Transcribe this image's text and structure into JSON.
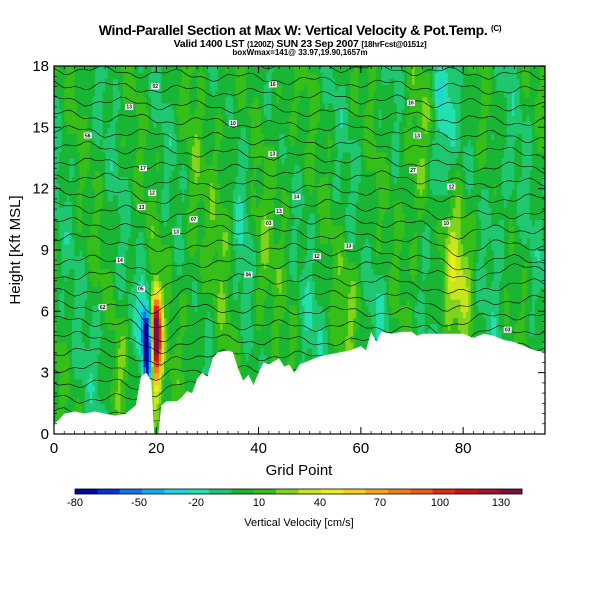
{
  "header": {
    "title": "Wind-Parallel Section at Max W: Vertical Velocity & Pot.Temp.",
    "copyright": "(C)",
    "valid_prefix": "Valid 1400 LST",
    "valid_utc": "(1200Z)",
    "valid_date": "SUN 23 Sep 2007",
    "forecast_tag": "[18hrFcst@0151z]",
    "subtitle": "boxWmax=141@ 33.97,19.90,1657m"
  },
  "chart_data": {
    "type": "heatmap",
    "title": "Wind-Parallel Section at Max W: Vertical Velocity & Pot.Temp.",
    "xlabel": "Grid Point",
    "ylabel": "Height [Kft MSL]",
    "xlim": [
      0,
      96
    ],
    "ylim": [
      0,
      18
    ],
    "x_ticks": [
      0,
      20,
      40,
      60,
      80
    ],
    "y_ticks": [
      0,
      3,
      6,
      9,
      12,
      15,
      18
    ],
    "x_tick_labels": [
      "0",
      "20",
      "40",
      "60",
      "80"
    ],
    "y_tick_labels": [
      "0",
      "3",
      "6",
      "9",
      "12",
      "15",
      "18"
    ],
    "colorbar": {
      "title": "Vertical Velocity [cm/s]",
      "range": [
        -80,
        140
      ],
      "tick_values": [
        -80,
        -50,
        -20,
        10,
        40,
        70,
        100,
        130
      ],
      "tick_labels": [
        "-80",
        "-50",
        "-20",
        "10",
        "40",
        "70",
        "100",
        "130"
      ],
      "colors": [
        "#000aa0",
        "#0033d8",
        "#0b76ee",
        "#10aaf0",
        "#1cd4e0",
        "#22e0b0",
        "#1ec770",
        "#18b634",
        "#36bf18",
        "#80d41c",
        "#c8e61c",
        "#ecee1c",
        "#f7d21a",
        "#f7a618",
        "#f07e18",
        "#ea5a16",
        "#dc2a16",
        "#c81414",
        "#a01430",
        "#7a1040"
      ]
    },
    "terrain_kft": [
      [
        0,
        0.5
      ],
      [
        1,
        0.7
      ],
      [
        2,
        1.0
      ],
      [
        4,
        1.1
      ],
      [
        6,
        1.0
      ],
      [
        8,
        1.1
      ],
      [
        10,
        1.0
      ],
      [
        12,
        0.9
      ],
      [
        14,
        1.0
      ],
      [
        16,
        1.4
      ],
      [
        17,
        2.8
      ],
      [
        18,
        3.0
      ],
      [
        19,
        2.6
      ],
      [
        19.6,
        0
      ],
      [
        20.4,
        0
      ],
      [
        21,
        1.4
      ],
      [
        22,
        1.6
      ],
      [
        24,
        1.6
      ],
      [
        25,
        1.8
      ],
      [
        26,
        2.1
      ],
      [
        27,
        2.0
      ],
      [
        28,
        2.7
      ],
      [
        29,
        3.0
      ],
      [
        30,
        2.8
      ],
      [
        31,
        3.7
      ],
      [
        32,
        4.0
      ],
      [
        34,
        4.1
      ],
      [
        35,
        4.0
      ],
      [
        36,
        3.2
      ],
      [
        37,
        2.6
      ],
      [
        38,
        2.9
      ],
      [
        39,
        2.4
      ],
      [
        40,
        3.0
      ],
      [
        41,
        3.5
      ],
      [
        42,
        3.4
      ],
      [
        44,
        3.7
      ],
      [
        45,
        3.3
      ],
      [
        46,
        3.4
      ],
      [
        47,
        3.0
      ],
      [
        48,
        3.4
      ],
      [
        50,
        3.6
      ],
      [
        52,
        3.8
      ],
      [
        54,
        3.9
      ],
      [
        56,
        4.0
      ],
      [
        58,
        4.1
      ],
      [
        60,
        4.3
      ],
      [
        61,
        4.1
      ],
      [
        62,
        5.0
      ],
      [
        63,
        4.5
      ],
      [
        64,
        5.0
      ],
      [
        66,
        4.9
      ],
      [
        68,
        5.0
      ],
      [
        70,
        5.0
      ],
      [
        71,
        4.8
      ],
      [
        72,
        4.9
      ],
      [
        74,
        4.9
      ],
      [
        76,
        4.9
      ],
      [
        78,
        4.9
      ],
      [
        80,
        4.9
      ],
      [
        82,
        4.7
      ],
      [
        84,
        4.9
      ],
      [
        86,
        4.8
      ],
      [
        88,
        4.6
      ],
      [
        90,
        4.5
      ],
      [
        92,
        4.3
      ],
      [
        94,
        4.1
      ],
      [
        96,
        4.0
      ]
    ],
    "theta_contour_labels": [
      {
        "text": "02",
        "x": 19.8,
        "y": 17.0
      },
      {
        "text": "16",
        "x": 42.8,
        "y": 17.1
      },
      {
        "text": "16",
        "x": 69.8,
        "y": 16.2
      },
      {
        "text": "13",
        "x": 14.7,
        "y": 16.0
      },
      {
        "text": "10",
        "x": 35.0,
        "y": 15.2
      },
      {
        "text": "56",
        "x": 6.6,
        "y": 14.6
      },
      {
        "text": "13",
        "x": 71.0,
        "y": 14.6
      },
      {
        "text": "13",
        "x": 42.7,
        "y": 13.7
      },
      {
        "text": "17",
        "x": 17.4,
        "y": 13.0
      },
      {
        "text": "27",
        "x": 70.2,
        "y": 12.9
      },
      {
        "text": "12",
        "x": 77.7,
        "y": 12.1
      },
      {
        "text": "12",
        "x": 19.2,
        "y": 11.8
      },
      {
        "text": "14",
        "x": 47.4,
        "y": 11.6
      },
      {
        "text": "13",
        "x": 17.1,
        "y": 11.1
      },
      {
        "text": "13",
        "x": 44.0,
        "y": 10.9
      },
      {
        "text": "07",
        "x": 27.3,
        "y": 10.5
      },
      {
        "text": "03",
        "x": 42.0,
        "y": 10.3
      },
      {
        "text": "10",
        "x": 76.7,
        "y": 10.3
      },
      {
        "text": "13",
        "x": 23.9,
        "y": 9.9
      },
      {
        "text": "13",
        "x": 57.6,
        "y": 9.2
      },
      {
        "text": "12",
        "x": 51.4,
        "y": 8.7
      },
      {
        "text": "14",
        "x": 12.9,
        "y": 8.5
      },
      {
        "text": "06",
        "x": 38.0,
        "y": 7.8
      },
      {
        "text": "05",
        "x": 17.0,
        "y": 7.1
      },
      {
        "text": "62",
        "x": 9.5,
        "y": 6.2
      },
      {
        "text": "03",
        "x": 88.7,
        "y": 5.1
      }
    ]
  },
  "colorbar_labels": {
    "v0": "-80",
    "v1": "-50",
    "v2": "-20",
    "v3": "10",
    "v4": "40",
    "v5": "70",
    "v6": "100",
    "v7": "130"
  }
}
